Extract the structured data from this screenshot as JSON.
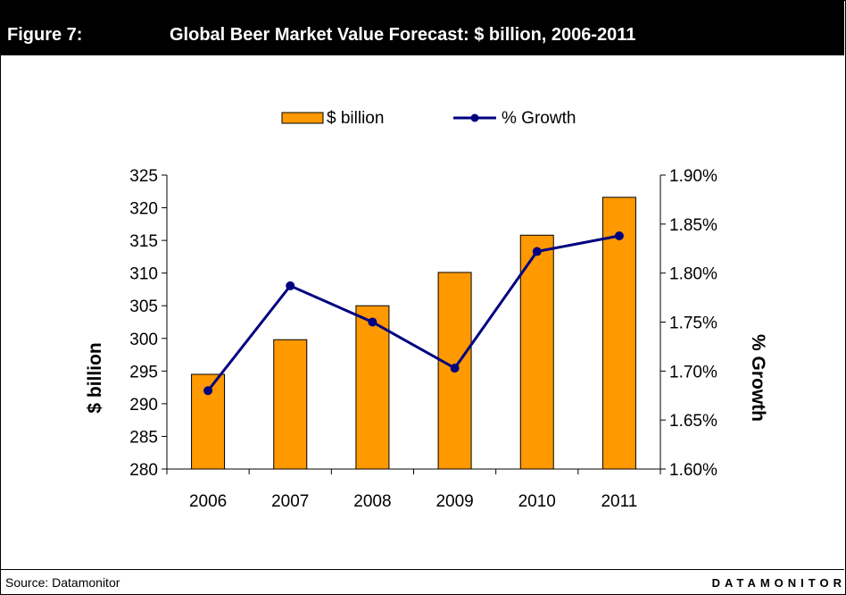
{
  "header": {
    "figure_label": "Figure 7:",
    "title": "Global Beer Market Value Forecast: $ billion, 2006-2011"
  },
  "footer": {
    "source": "Source: Datamonitor",
    "brand": "DATAMONITOR"
  },
  "colors": {
    "bar_fill": "#FF9900",
    "bar_stroke": "#000000",
    "line": "#000080",
    "header_bg": "#000000"
  },
  "chart_data": {
    "type": "bar",
    "categories": [
      "2006",
      "2007",
      "2008",
      "2009",
      "2010",
      "2011"
    ],
    "series": [
      {
        "name": "$ billion",
        "type": "bar",
        "axis": "left",
        "values": [
          294.5,
          299.8,
          305.0,
          310.1,
          315.8,
          321.6
        ]
      },
      {
        "name": "% Growth",
        "type": "line",
        "axis": "right",
        "values": [
          1.68,
          1.787,
          1.75,
          1.703,
          1.822,
          1.838
        ]
      }
    ],
    "ylabel": "$ billion",
    "ylim": [
      280,
      325
    ],
    "yticks": [
      "280",
      "285",
      "290",
      "295",
      "300",
      "305",
      "310",
      "315",
      "320",
      "325"
    ],
    "y2label": "% Growth",
    "y2lim": [
      1.6,
      1.9
    ],
    "y2ticks": [
      "1.60%",
      "1.65%",
      "1.70%",
      "1.75%",
      "1.80%",
      "1.85%",
      "1.90%"
    ],
    "legend": "top-center",
    "grid": false
  }
}
